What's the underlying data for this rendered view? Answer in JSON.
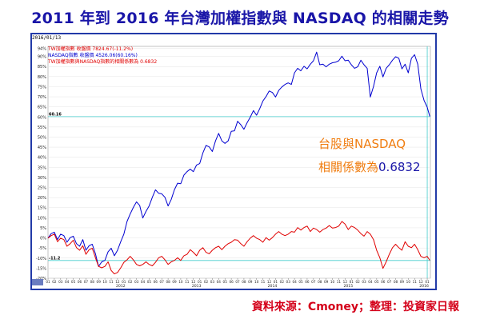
{
  "title": "2011 年到 2016 年台灣加權指數與 NASDAQ 的相關走勢",
  "panel_date": "2016/01/13",
  "legend": [
    "TW加權指數 收盤價 7824.67(-11.2%)",
    "NASDAQ指數 收盤價 4526.06(60.16%)",
    "TW加權指數與NASDAQ指數的相關係數為 0.6832"
  ],
  "annotation_line1": "台股與NASDAQ",
  "annotation_label": "相關係數為",
  "annotation_value": "0.6832",
  "source": "資料來源：Cmoney；整理：投資家日報",
  "colors": {
    "title": "#1a16a8",
    "nasdaq": "#0000d0",
    "taiex": "#e00000",
    "annotation": "#f07d10",
    "source": "#d4001a",
    "marker_line": "#44cccc"
  },
  "chart_data": {
    "type": "line",
    "y_unit": "%",
    "ylim": [
      -20,
      95
    ],
    "y_ticks": [
      "94%",
      "90%",
      "85%",
      "80%",
      "75%",
      "70%",
      "65%",
      "60%",
      "55%",
      "50%",
      "45%",
      "40%",
      "35%",
      "30%",
      "25%",
      "20%",
      "15%",
      "10%",
      "5%",
      "0%",
      "-5%",
      "-10%",
      "-15%",
      "-20%"
    ],
    "x_ticks": [
      "01",
      "02",
      "03",
      "04",
      "05",
      "06",
      "07",
      "08",
      "09",
      "10",
      "11",
      "12",
      "01",
      "02",
      "03",
      "04",
      "05",
      "06",
      "07",
      "08",
      "09",
      "10",
      "11",
      "12",
      "01",
      "02",
      "03",
      "04",
      "05",
      "06",
      "07",
      "08",
      "09",
      "10",
      "11",
      "12",
      "01",
      "02",
      "03",
      "04",
      "05",
      "06",
      "07",
      "08",
      "09",
      "10",
      "11",
      "12",
      "01",
      "02",
      "03",
      "04",
      "05",
      "06",
      "07",
      "08",
      "09",
      "10",
      "11",
      "12",
      "01"
    ],
    "year_labels": [
      "2012",
      "2013",
      "2014",
      "2015",
      "2016"
    ],
    "markers": [
      {
        "label": "60.16",
        "value": 60.16
      },
      {
        "label": "-11.2",
        "value": -11.2
      }
    ],
    "series": [
      {
        "name": "NASDAQ指數",
        "x": [
          0,
          0.5,
          1,
          1.5,
          2,
          2.5,
          3,
          3.5,
          4,
          4.5,
          5,
          5.5,
          6,
          6.5,
          7,
          7.5,
          8,
          8.5,
          9,
          9.5,
          10,
          10.5,
          11,
          11.5,
          12,
          12.5,
          13,
          13.5,
          14,
          14.5,
          15,
          15.5,
          16,
          16.5,
          17,
          17.5,
          18,
          18.5,
          19,
          19.5,
          20,
          20.5,
          21,
          21.5,
          22,
          22.5,
          23,
          23.5,
          24,
          24.5,
          25,
          25.5,
          26,
          26.5,
          27,
          27.5,
          28,
          28.5,
          29,
          29.5,
          30,
          30.5,
          31,
          31.5,
          32,
          32.5,
          33,
          33.5,
          34,
          34.5,
          35,
          35.5,
          36,
          36.5,
          37,
          37.5,
          38,
          38.5,
          39,
          39.5,
          40,
          40.5,
          41,
          41.5,
          42,
          42.5,
          43,
          43.5,
          44,
          44.5,
          45,
          45.5,
          46,
          46.5,
          47,
          47.5,
          48,
          48.5,
          49,
          49.5,
          50,
          50.5,
          51,
          51.5,
          52,
          52.5,
          53,
          53.5,
          54,
          54.5,
          55,
          55.5,
          56,
          56.5,
          57,
          57.5,
          58,
          58.5,
          59,
          59.5,
          60,
          60.4
        ],
        "values": [
          0,
          2,
          3,
          -1,
          2,
          1,
          -2,
          0,
          1,
          -3,
          -4,
          -1,
          -6,
          -4,
          -3,
          -8,
          -14,
          -12,
          -11,
          -7,
          -5,
          -9,
          -6,
          -2,
          2,
          8,
          12,
          15,
          18,
          16,
          10,
          13,
          16,
          20,
          24,
          22,
          22,
          20,
          16,
          19,
          24,
          27,
          27,
          31,
          33,
          34,
          33,
          36,
          37,
          42,
          46,
          45,
          43,
          48,
          52,
          48,
          47,
          48,
          53,
          53,
          58,
          56,
          54,
          57,
          60,
          63,
          61,
          64,
          68,
          70,
          73,
          72,
          70,
          73,
          75,
          76,
          77,
          76,
          82,
          84,
          83,
          85,
          84,
          86,
          88,
          92,
          86,
          86,
          85,
          86,
          87,
          87,
          88,
          90,
          88,
          88,
          86,
          84,
          85,
          88,
          86,
          84,
          70,
          75,
          82,
          85,
          80,
          84,
          86,
          88,
          90,
          89,
          84,
          86,
          82,
          89,
          91,
          86,
          74,
          68,
          65,
          60.16
        ]
      },
      {
        "name": "TW加權指數",
        "x": [
          0,
          0.5,
          1,
          1.5,
          2,
          2.5,
          3,
          3.5,
          4,
          4.5,
          5,
          5.5,
          6,
          6.5,
          7,
          7.5,
          8,
          8.5,
          9,
          9.5,
          10,
          10.5,
          11,
          11.5,
          12,
          12.5,
          13,
          13.5,
          14,
          14.5,
          15,
          15.5,
          16,
          16.5,
          17,
          17.5,
          18,
          18.5,
          19,
          19.5,
          20,
          20.5,
          21,
          21.5,
          22,
          22.5,
          23,
          23.5,
          24,
          24.5,
          25,
          25.5,
          26,
          26.5,
          27,
          27.5,
          28,
          28.5,
          29,
          29.5,
          30,
          30.5,
          31,
          31.5,
          32,
          32.5,
          33,
          33.5,
          34,
          34.5,
          35,
          35.5,
          36,
          36.5,
          37,
          37.5,
          38,
          38.5,
          39,
          39.5,
          40,
          40.5,
          41,
          41.5,
          42,
          42.5,
          43,
          43.5,
          44,
          44.5,
          45,
          45.5,
          46,
          46.5,
          47,
          47.5,
          48,
          48.5,
          49,
          49.5,
          50,
          50.5,
          51,
          51.5,
          52,
          52.5,
          53,
          53.5,
          54,
          54.5,
          55,
          55.5,
          56,
          56.5,
          57,
          57.5,
          58,
          58.5,
          59,
          59.5,
          60,
          60.4
        ],
        "values": [
          0,
          1,
          2,
          -2,
          0,
          -1,
          -4,
          -3,
          -1,
          -5,
          -6,
          -4,
          -8,
          -6,
          -5,
          -10,
          -14,
          -15,
          -14,
          -12,
          -16,
          -18,
          -17,
          -15,
          -12,
          -11,
          -9,
          -11,
          -13,
          -14,
          -13,
          -12,
          -13,
          -14,
          -12,
          -10,
          -9,
          -11,
          -13,
          -12,
          -11,
          -10,
          -11,
          -9,
          -8,
          -6,
          -7,
          -9,
          -6,
          -5,
          -7,
          -8,
          -6,
          -5,
          -4,
          -6,
          -4,
          -3,
          -2,
          -1,
          -1,
          -3,
          -4,
          -2,
          0,
          1,
          0,
          -1,
          -2,
          0,
          -1,
          0,
          2,
          3,
          2,
          1,
          2,
          3,
          3,
          5,
          4,
          5,
          6,
          3,
          5,
          4,
          3,
          4,
          5,
          6,
          5,
          5,
          6,
          8,
          7,
          4,
          6,
          5,
          4,
          2,
          1,
          3,
          2,
          -1,
          -6,
          -10,
          -15,
          -12,
          -8,
          -5,
          -3,
          -5,
          -6,
          -2,
          -4,
          -5,
          -3,
          -6,
          -9,
          -10,
          -9,
          -11.2
        ]
      }
    ]
  }
}
